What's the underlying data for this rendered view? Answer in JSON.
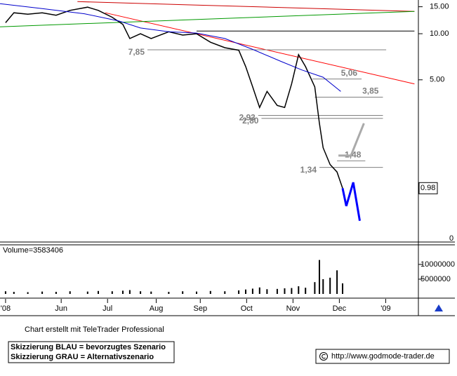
{
  "chart_data": [
    {
      "type": "line",
      "log_scale": true,
      "xlim": [
        -0.12,
        8.89
      ],
      "ylim": [
        0.46,
        16.6
      ],
      "yticks": [
        {
          "value": 15,
          "label": "15.00"
        },
        {
          "value": 10,
          "label": "10.00"
        },
        {
          "value": 5,
          "label": "5.00"
        }
      ],
      "axis_floor_label": "0",
      "last_value": 0.98,
      "series": [
        {
          "color": "#000000",
          "x": [
            0,
            0.18,
            0.48,
            0.79,
            1.09,
            1.39,
            1.77,
            2.0,
            2.3,
            2.53,
            2.68,
            2.91,
            3.14,
            3.52,
            3.82,
            4.12,
            4.42,
            4.73,
            5.03,
            5.18,
            5.33,
            5.48,
            5.64,
            5.86,
            6.02,
            6.17,
            6.32,
            6.47,
            6.67,
            6.77,
            6.85,
            7.0,
            7.15,
            7.27
          ],
          "values": [
            11.8,
            13.7,
            13.4,
            13.7,
            13.2,
            14.2,
            14.9,
            14.2,
            12.8,
            11.5,
            9.3,
            10.0,
            9.3,
            10.3,
            9.8,
            10.0,
            8.8,
            8.1,
            7.8,
            6.1,
            4.5,
            3.3,
            4.2,
            3.4,
            3.3,
            4.7,
            7.3,
            6.1,
            4.5,
            2.6,
            1.8,
            1.4,
            1.25,
            0.98
          ]
        },
        {
          "color": "#0000cc",
          "x": [
            -0.12,
            0.79,
            1.7,
            2.45,
            2.91,
            3.52,
            4.12,
            4.73,
            5.33,
            5.94,
            6.39,
            6.85,
            7.23
          ],
          "values": [
            15.7,
            14.6,
            13.5,
            12.1,
            10.9,
            10.3,
            10.1,
            9.3,
            7.9,
            6.6,
            5.8,
            5.2,
            4.2
          ]
        }
      ],
      "trend_lines": [
        {
          "color": "#ff0000",
          "x": [
            2.15,
            8.82
          ],
          "values": [
            13.7,
            4.7
          ]
        },
        {
          "color": "#cc0000",
          "x": [
            1.55,
            8.82
          ],
          "values": [
            16.2,
            14.0
          ]
        },
        {
          "color": "#009900",
          "x": [
            -0.12,
            8.82
          ],
          "values": [
            11.1,
            14.0
          ]
        },
        {
          "color": "#000000",
          "x": [
            4.12,
            8.82
          ],
          "values": [
            10.4,
            10.4
          ]
        }
      ],
      "levels": [
        {
          "value": 7.85,
          "label": "7,85",
          "x": [
            3.06,
            8.21
          ],
          "label_side": "left"
        },
        {
          "value": 5.06,
          "label": "5,06",
          "x": [
            6.62,
            7.68
          ],
          "label_side": "right"
        },
        {
          "value": 3.85,
          "label": "3,85",
          "x": [
            6.67,
            8.14
          ],
          "label_side": "right"
        },
        {
          "value": 2.93,
          "label": "2,93",
          "x": [
            5.45,
            8.14
          ],
          "label_side": "left"
        },
        {
          "value": 2.8,
          "label": "2,80",
          "x": [
            5.52,
            8.14
          ],
          "label_side": "left"
        },
        {
          "value": 1.34,
          "label": "1,34",
          "x": [
            6.77,
            8.14
          ],
          "label_side": "left"
        },
        {
          "value": 1.48,
          "label": "1,48",
          "x": [
            7.15,
            7.76
          ],
          "label_side": "right"
        }
      ],
      "scenarios": [
        {
          "color": "#aaaaaa",
          "x": [
            7.18,
            7.45,
            7.73
          ],
          "values": [
            1.6,
            1.6,
            2.6
          ]
        },
        {
          "color": "#0000ff",
          "x": [
            7.27,
            7.35,
            7.5,
            7.64
          ],
          "values": [
            0.98,
            0.75,
            1.07,
            0.6
          ]
        }
      ]
    },
    {
      "type": "bar",
      "volume_label": "Volume=3583406",
      "xlim": [
        -0.12,
        8.89
      ],
      "ylim": [
        0,
        16400000
      ],
      "yticks": [
        10000000,
        5000000
      ],
      "xticks": [
        {
          "value": 0,
          "label": "'08"
        },
        {
          "value": 1.2,
          "label": "Jun"
        },
        {
          "value": 2.2,
          "label": "Jul"
        },
        {
          "value": 3.25,
          "label": "Aug"
        },
        {
          "value": 4.2,
          "label": "Sep"
        },
        {
          "value": 5.2,
          "label": "Oct"
        },
        {
          "value": 6.2,
          "label": "Nov"
        },
        {
          "value": 7.2,
          "label": "Dec"
        },
        {
          "value": 8.2,
          "label": "'09"
        }
      ],
      "color": "#000000",
      "x": [
        0,
        0.18,
        0.48,
        0.79,
        1.09,
        1.39,
        1.77,
        2.0,
        2.3,
        2.53,
        2.68,
        2.91,
        3.14,
        3.52,
        3.82,
        4.12,
        4.42,
        4.73,
        5.03,
        5.18,
        5.33,
        5.48,
        5.64,
        5.86,
        6.02,
        6.17,
        6.32,
        6.47,
        6.67,
        6.77,
        6.85,
        7.0,
        7.15,
        7.27
      ],
      "values": [
        900000,
        700000,
        600000,
        800000,
        700000,
        900000,
        800000,
        1000000,
        900000,
        1100000,
        1300000,
        900000,
        800000,
        700000,
        900000,
        800000,
        1000000,
        900000,
        1200000,
        1500000,
        1800000,
        2200000,
        1600000,
        1700000,
        1900000,
        2000000,
        2600000,
        2100000,
        4000000,
        11500000,
        5000000,
        5500000,
        8000000,
        3583406
      ]
    }
  ],
  "footer": {
    "credit": "Chart erstellt mit TeleTrader Professional",
    "legend": [
      "Skizzierung BLAU = bevorzugtes Szenario",
      "Skizzierung GRAU = Alternativszenario"
    ],
    "url": "http://www.godmode-trader.de"
  }
}
